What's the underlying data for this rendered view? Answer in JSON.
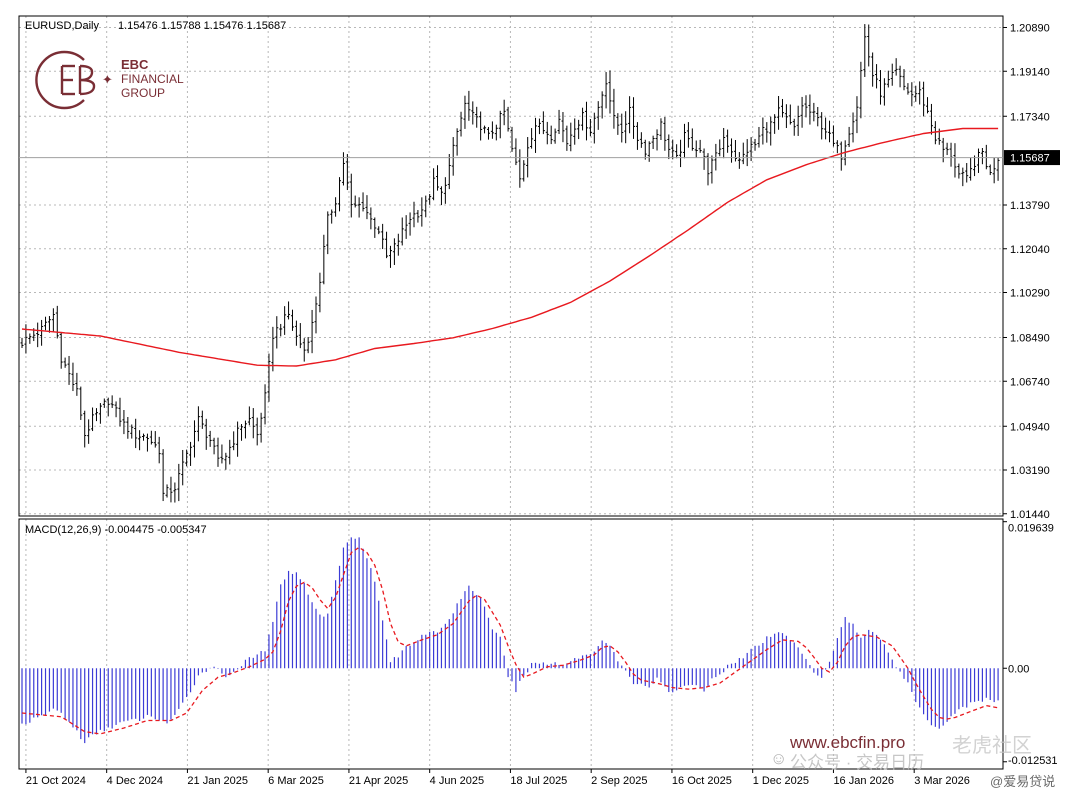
{
  "header": {
    "symbol": "EURUSD,Daily",
    "ohlc": "1.15476 1.15788 1.15476 1.15687"
  },
  "logo": {
    "line1": "EBC",
    "line2": "FINANCIAL",
    "line3": "GROUP",
    "color": "#7a2e35"
  },
  "macd_header": "MACD(12,26,9) -0.004475 -0.005347",
  "watermark": {
    "url": "www.ebcfin.pro",
    "social": "公众号 · 交易日历",
    "social2": "老虎社区",
    "corner": "@爱易贷说"
  },
  "colors": {
    "candle": "#000000",
    "ma": "#e8191f",
    "histogram": "#3b3bd6",
    "signal": "#e8191f",
    "grid": "#b8b8b8",
    "current_price_bg": "#000000"
  },
  "chart_data": [
    {
      "type": "candlestick",
      "title": "EURUSD,Daily",
      "y_ticks": [
        "1.20890",
        "1.19140",
        "1.17340",
        "1.15687",
        "1.13790",
        "1.12040",
        "1.10290",
        "1.08490",
        "1.06740",
        "1.04940",
        "1.03190",
        "1.01440"
      ],
      "ylim": [
        1.0135,
        1.2135
      ],
      "current_price": "1.15687",
      "x_ticks": [
        "21 Oct 2024",
        "4 Dec 2024",
        "21 Jan 2025",
        "6 Mar 2025",
        "21 Apr 2025",
        "4 Jun 2025",
        "18 Jul 2025",
        "2 Sep 2025",
        "16 Oct 2025",
        "1 Dec 2025",
        "16 Jan 2026",
        "3 Mar 2026"
      ],
      "close_path": [
        [
          0,
          1.083
        ],
        [
          5,
          1.088
        ],
        [
          8,
          1.094
        ],
        [
          10,
          1.077
        ],
        [
          14,
          1.063
        ],
        [
          16,
          1.046
        ],
        [
          18,
          1.052
        ],
        [
          22,
          1.06
        ],
        [
          26,
          1.05
        ],
        [
          29,
          1.046
        ],
        [
          32,
          1.045
        ],
        [
          35,
          1.04
        ],
        [
          36,
          1.022
        ],
        [
          39,
          1.025
        ],
        [
          42,
          1.038
        ],
        [
          45,
          1.052
        ],
        [
          48,
          1.044
        ],
        [
          50,
          1.035
        ],
        [
          52,
          1.038
        ],
        [
          56,
          1.05
        ],
        [
          58,
          1.052
        ],
        [
          60,
          1.046
        ],
        [
          62,
          1.061
        ],
        [
          64,
          1.086
        ],
        [
          66,
          1.09
        ],
        [
          68,
          1.094
        ],
        [
          70,
          1.085
        ],
        [
          72,
          1.08
        ],
        [
          74,
          1.09
        ],
        [
          76,
          1.108
        ],
        [
          78,
          1.132
        ],
        [
          80,
          1.14
        ],
        [
          82,
          1.155
        ],
        [
          84,
          1.137
        ],
        [
          87,
          1.138
        ],
        [
          89,
          1.132
        ],
        [
          91,
          1.128
        ],
        [
          93,
          1.117
        ],
        [
          95,
          1.121
        ],
        [
          97,
          1.127
        ],
        [
          99,
          1.133
        ],
        [
          101,
          1.135
        ],
        [
          103,
          1.138
        ],
        [
          105,
          1.147
        ],
        [
          107,
          1.142
        ],
        [
          109,
          1.153
        ],
        [
          111,
          1.167
        ],
        [
          113,
          1.178
        ],
        [
          115,
          1.173
        ],
        [
          117,
          1.17
        ],
        [
          119,
          1.165
        ],
        [
          121,
          1.17
        ],
        [
          123,
          1.175
        ],
        [
          125,
          1.16
        ],
        [
          127,
          1.148
        ],
        [
          129,
          1.162
        ],
        [
          131,
          1.17
        ],
        [
          133,
          1.168
        ],
        [
          135,
          1.166
        ],
        [
          137,
          1.172
        ],
        [
          139,
          1.163
        ],
        [
          141,
          1.17
        ],
        [
          143,
          1.173
        ],
        [
          145,
          1.168
        ],
        [
          147,
          1.177
        ],
        [
          149,
          1.188
        ],
        [
          151,
          1.172
        ],
        [
          153,
          1.168
        ],
        [
          155,
          1.175
        ],
        [
          157,
          1.165
        ],
        [
          159,
          1.16
        ],
        [
          161,
          1.165
        ],
        [
          163,
          1.17
        ],
        [
          165,
          1.16
        ],
        [
          167,
          1.156
        ],
        [
          169,
          1.165
        ],
        [
          171,
          1.162
        ],
        [
          173,
          1.16
        ],
        [
          175,
          1.152
        ],
        [
          177,
          1.157
        ],
        [
          179,
          1.165
        ],
        [
          181,
          1.16
        ],
        [
          183,
          1.155
        ],
        [
          185,
          1.16
        ],
        [
          187,
          1.162
        ],
        [
          189,
          1.168
        ],
        [
          191,
          1.17
        ],
        [
          193,
          1.175
        ],
        [
          195,
          1.172
        ],
        [
          197,
          1.168
        ],
        [
          199,
          1.178
        ],
        [
          201,
          1.175
        ],
        [
          203,
          1.172
        ],
        [
          205,
          1.168
        ],
        [
          207,
          1.162
        ],
        [
          209,
          1.158
        ],
        [
          211,
          1.168
        ],
        [
          213,
          1.178
        ],
        [
          215,
          1.205
        ],
        [
          217,
          1.19
        ],
        [
          219,
          1.183
        ],
        [
          221,
          1.187
        ],
        [
          223,
          1.191
        ],
        [
          225,
          1.185
        ],
        [
          227,
          1.182
        ],
        [
          229,
          1.183
        ],
        [
          231,
          1.175
        ],
        [
          233,
          1.165
        ],
        [
          235,
          1.16
        ],
        [
          237,
          1.158
        ],
        [
          239,
          1.15
        ],
        [
          241,
          1.148
        ],
        [
          243,
          1.155
        ],
        [
          245,
          1.159
        ],
        [
          247,
          1.15
        ],
        [
          249,
          1.157
        ]
      ],
      "series": [
        {
          "name": "",
          "kind": "moving-average",
          "path": [
            [
              0,
              1.0883
            ],
            [
              20,
              1.0855
            ],
            [
              40,
              1.079
            ],
            [
              60,
              1.0738
            ],
            [
              70,
              1.0735
            ],
            [
              80,
              1.076
            ],
            [
              90,
              1.0805
            ],
            [
              100,
              1.0825
            ],
            [
              110,
              1.0848
            ],
            [
              120,
              1.0885
            ],
            [
              130,
              1.093
            ],
            [
              140,
              1.099
            ],
            [
              150,
              1.1075
            ],
            [
              160,
              1.1175
            ],
            [
              170,
              1.128
            ],
            [
              180,
              1.139
            ],
            [
              190,
              1.148
            ],
            [
              200,
              1.154
            ],
            [
              210,
              1.159
            ],
            [
              220,
              1.163
            ],
            [
              230,
              1.1665
            ],
            [
              240,
              1.1685
            ],
            [
              249,
              1.1685
            ]
          ]
        }
      ]
    },
    {
      "type": "bar",
      "title": "MACD(12,26,9) -0.004475 -0.005347",
      "y_ticks": [
        "0.019639",
        "0.00",
        "-0.012531"
      ],
      "ylim": [
        -0.0135,
        0.02
      ],
      "histogram_path": [
        [
          0,
          -0.0075
        ],
        [
          5,
          -0.0065
        ],
        [
          8,
          -0.0055
        ],
        [
          10,
          -0.006
        ],
        [
          14,
          -0.0085
        ],
        [
          16,
          -0.01
        ],
        [
          18,
          -0.009
        ],
        [
          22,
          -0.008
        ],
        [
          26,
          -0.0072
        ],
        [
          29,
          -0.007
        ],
        [
          32,
          -0.0065
        ],
        [
          35,
          -0.0068
        ],
        [
          37,
          -0.0073
        ],
        [
          39,
          -0.0065
        ],
        [
          42,
          -0.004
        ],
        [
          45,
          -0.001
        ],
        [
          48,
          0.0002
        ],
        [
          50,
          -0.0002
        ],
        [
          52,
          -0.001
        ],
        [
          54,
          -0.0005
        ],
        [
          56,
          0.0005
        ],
        [
          58,
          0.0012
        ],
        [
          60,
          0.0018
        ],
        [
          62,
          0.0025
        ],
        [
          64,
          0.006
        ],
        [
          66,
          0.0115
        ],
        [
          68,
          0.0128
        ],
        [
          70,
          0.013
        ],
        [
          72,
          0.0112
        ],
        [
          74,
          0.009
        ],
        [
          76,
          0.007
        ],
        [
          78,
          0.0072
        ],
        [
          80,
          0.0118
        ],
        [
          82,
          0.016
        ],
        [
          84,
          0.0178
        ],
        [
          86,
          0.0175
        ],
        [
          88,
          0.015
        ],
        [
          90,
          0.0115
        ],
        [
          92,
          0.0065
        ],
        [
          94,
          0.001
        ],
        [
          96,
          0.0015
        ],
        [
          98,
          0.003
        ],
        [
          100,
          0.0035
        ],
        [
          102,
          0.0045
        ],
        [
          104,
          0.005
        ],
        [
          106,
          0.0045
        ],
        [
          108,
          0.006
        ],
        [
          110,
          0.0075
        ],
        [
          112,
          0.0095
        ],
        [
          114,
          0.011
        ],
        [
          116,
          0.01
        ],
        [
          118,
          0.0085
        ],
        [
          120,
          0.005
        ],
        [
          122,
          0.004
        ],
        [
          124,
          -0.001
        ],
        [
          126,
          -0.003
        ],
        [
          128,
          -0.001
        ],
        [
          130,
          0.0005
        ],
        [
          132,
          0.0008
        ],
        [
          134,
          0.0005
        ],
        [
          136,
          0.0008
        ],
        [
          138,
          0.0005
        ],
        [
          140,
          0.001
        ],
        [
          142,
          0.0015
        ],
        [
          144,
          0.0018
        ],
        [
          146,
          0.0022
        ],
        [
          148,
          0.004
        ],
        [
          150,
          0.003
        ],
        [
          152,
          0.001
        ],
        [
          154,
          -0.0005
        ],
        [
          156,
          -0.002
        ],
        [
          158,
          -0.002
        ],
        [
          160,
          -0.0025
        ],
        [
          162,
          -0.0015
        ],
        [
          164,
          -0.0025
        ],
        [
          166,
          -0.0035
        ],
        [
          168,
          -0.0025
        ],
        [
          170,
          -0.0025
        ],
        [
          172,
          -0.002
        ],
        [
          174,
          -0.003
        ],
        [
          176,
          -0.0015
        ],
        [
          178,
          -0.001
        ],
        [
          180,
          0.0005
        ],
        [
          182,
          0.001
        ],
        [
          184,
          0.0015
        ],
        [
          186,
          0.0025
        ],
        [
          188,
          0.003
        ],
        [
          190,
          0.004
        ],
        [
          192,
          0.0045
        ],
        [
          194,
          0.0048
        ],
        [
          196,
          0.004
        ],
        [
          198,
          0.003
        ],
        [
          200,
          0.001
        ],
        [
          202,
          -0.0005
        ],
        [
          204,
          -0.0015
        ],
        [
          206,
          0.001
        ],
        [
          208,
          0.004
        ],
        [
          210,
          0.007
        ],
        [
          212,
          0.0058
        ],
        [
          214,
          0.004
        ],
        [
          216,
          0.005
        ],
        [
          218,
          0.0045
        ],
        [
          220,
          0.0035
        ],
        [
          222,
          0.001
        ],
        [
          224,
          -0.0005
        ],
        [
          226,
          -0.002
        ],
        [
          228,
          -0.0045
        ],
        [
          230,
          -0.006
        ],
        [
          232,
          -0.0075
        ],
        [
          234,
          -0.008
        ],
        [
          236,
          -0.007
        ],
        [
          238,
          -0.006
        ],
        [
          240,
          -0.0052
        ],
        [
          242,
          -0.0048
        ],
        [
          244,
          -0.0045
        ],
        [
          246,
          -0.004
        ],
        [
          249,
          -0.0045
        ]
      ],
      "signal_path": [
        [
          0,
          -0.006
        ],
        [
          10,
          -0.0065
        ],
        [
          16,
          -0.0085
        ],
        [
          20,
          -0.0088
        ],
        [
          26,
          -0.008
        ],
        [
          32,
          -0.007
        ],
        [
          38,
          -0.007
        ],
        [
          42,
          -0.006
        ],
        [
          46,
          -0.003
        ],
        [
          50,
          -0.0012
        ],
        [
          54,
          -0.0006
        ],
        [
          58,
          0.0002
        ],
        [
          62,
          0.0012
        ],
        [
          64,
          0.0022
        ],
        [
          66,
          0.005
        ],
        [
          68,
          0.009
        ],
        [
          70,
          0.011
        ],
        [
          72,
          0.0115
        ],
        [
          74,
          0.0108
        ],
        [
          76,
          0.0092
        ],
        [
          78,
          0.008
        ],
        [
          80,
          0.0095
        ],
        [
          82,
          0.0125
        ],
        [
          84,
          0.0155
        ],
        [
          86,
          0.0162
        ],
        [
          88,
          0.0155
        ],
        [
          90,
          0.0138
        ],
        [
          92,
          0.0105
        ],
        [
          94,
          0.006
        ],
        [
          96,
          0.0035
        ],
        [
          98,
          0.003
        ],
        [
          102,
          0.0038
        ],
        [
          106,
          0.0045
        ],
        [
          110,
          0.006
        ],
        [
          114,
          0.009
        ],
        [
          116,
          0.0098
        ],
        [
          118,
          0.0092
        ],
        [
          120,
          0.0075
        ],
        [
          122,
          0.0058
        ],
        [
          124,
          0.003
        ],
        [
          126,
          0.0005
        ],
        [
          128,
          -0.0012
        ],
        [
          130,
          -0.0008
        ],
        [
          134,
          0.0002
        ],
        [
          138,
          0.0004
        ],
        [
          142,
          0.001
        ],
        [
          146,
          0.0018
        ],
        [
          148,
          0.0028
        ],
        [
          150,
          0.003
        ],
        [
          152,
          0.0022
        ],
        [
          154,
          0.0008
        ],
        [
          156,
          -0.0008
        ],
        [
          158,
          -0.0016
        ],
        [
          162,
          -0.002
        ],
        [
          166,
          -0.0026
        ],
        [
          170,
          -0.0028
        ],
        [
          174,
          -0.0026
        ],
        [
          178,
          -0.002
        ],
        [
          182,
          -0.0005
        ],
        [
          186,
          0.001
        ],
        [
          190,
          0.0025
        ],
        [
          194,
          0.0038
        ],
        [
          198,
          0.0036
        ],
        [
          200,
          0.0028
        ],
        [
          202,
          0.0015
        ],
        [
          204,
          0.0
        ],
        [
          206,
          -0.0005
        ],
        [
          208,
          0.0008
        ],
        [
          210,
          0.003
        ],
        [
          212,
          0.0042
        ],
        [
          214,
          0.0045
        ],
        [
          218,
          0.0042
        ],
        [
          222,
          0.003
        ],
        [
          224,
          0.0015
        ],
        [
          226,
          0.0
        ],
        [
          228,
          -0.002
        ],
        [
          230,
          -0.0038
        ],
        [
          232,
          -0.0055
        ],
        [
          234,
          -0.0066
        ],
        [
          236,
          -0.0068
        ],
        [
          238,
          -0.0066
        ],
        [
          242,
          -0.0058
        ],
        [
          246,
          -0.005
        ],
        [
          249,
          -0.0053
        ]
      ]
    }
  ]
}
